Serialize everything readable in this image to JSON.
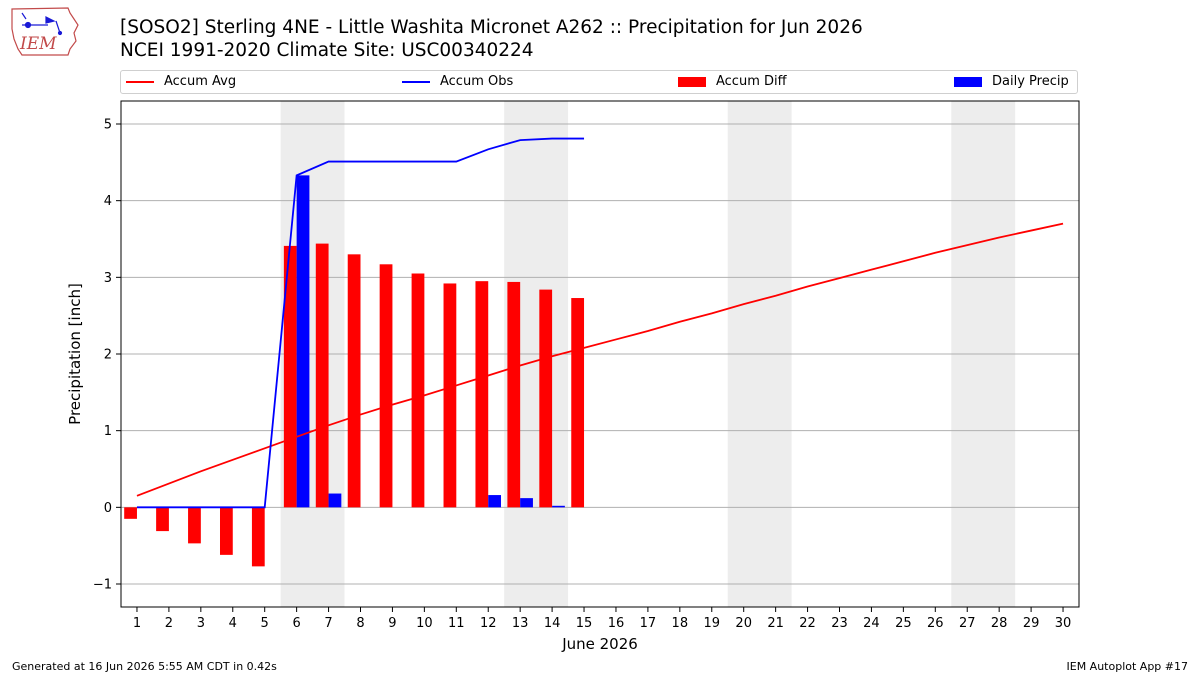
{
  "title": "[SOSO2] Sterling 4NE - Little Washita Micronet A262 :: Precipitation for Jun 2026",
  "subtitle": "NCEI 1991-2020 Climate Site: USC00340224",
  "logo": {
    "text": "IEM"
  },
  "footer": {
    "left": "Generated at 16 Jun 2026 5:55 AM CDT in 0.42s",
    "right": "IEM Autoplot App #17"
  },
  "chart_data": {
    "type": "bar",
    "xlabel": "June 2026",
    "ylabel": "Precipitation [inch]",
    "ylim": [
      -1.3,
      5.3
    ],
    "xlim": [
      0.5,
      30.5
    ],
    "grid": "horizontal",
    "legend_placement": "top",
    "weekend_shading": [
      [
        5.5,
        7.5
      ],
      [
        12.5,
        14.5
      ],
      [
        19.5,
        21.5
      ],
      [
        26.5,
        28.5
      ]
    ],
    "x": [
      1,
      2,
      3,
      4,
      5,
      6,
      7,
      8,
      9,
      10,
      11,
      12,
      13,
      14,
      15,
      16,
      17,
      18,
      19,
      20,
      21,
      22,
      23,
      24,
      25,
      26,
      27,
      28,
      29,
      30
    ],
    "yticks": [
      -1,
      0,
      1,
      2,
      3,
      4,
      5
    ],
    "series": [
      {
        "name": "Accum Avg",
        "kind": "line",
        "color": "#ff0000",
        "x": [
          1,
          2,
          3,
          4,
          5,
          6,
          7,
          8,
          9,
          10,
          11,
          12,
          13,
          14,
          15,
          16,
          17,
          18,
          19,
          20,
          21,
          22,
          23,
          24,
          25,
          26,
          27,
          28,
          29,
          30
        ],
        "values": [
          0.15,
          0.31,
          0.47,
          0.62,
          0.77,
          0.92,
          1.07,
          1.21,
          1.34,
          1.46,
          1.59,
          1.72,
          1.85,
          1.97,
          2.08,
          2.19,
          2.3,
          2.42,
          2.53,
          2.65,
          2.76,
          2.88,
          2.99,
          3.1,
          3.21,
          3.32,
          3.42,
          3.52,
          3.61,
          3.7
        ]
      },
      {
        "name": "Accum Obs",
        "kind": "line",
        "color": "#0000ff",
        "x": [
          1,
          2,
          3,
          4,
          5,
          6,
          7,
          8,
          9,
          10,
          11,
          12,
          13,
          14,
          15
        ],
        "values": [
          0,
          0,
          0,
          0,
          0,
          4.33,
          4.51,
          4.51,
          4.51,
          4.51,
          4.51,
          4.67,
          4.79,
          4.81,
          4.81
        ]
      },
      {
        "name": "Accum Diff",
        "kind": "bar",
        "color": "#ff0000",
        "x": [
          1,
          2,
          3,
          4,
          5,
          6,
          7,
          8,
          9,
          10,
          11,
          12,
          13,
          14,
          15
        ],
        "values": [
          -0.15,
          -0.31,
          -0.47,
          -0.62,
          -0.77,
          3.41,
          3.44,
          3.3,
          3.17,
          3.05,
          2.92,
          2.95,
          2.94,
          2.84,
          2.73
        ]
      },
      {
        "name": "Daily Precip",
        "kind": "bar",
        "color": "#0000ff",
        "x": [
          1,
          2,
          3,
          4,
          5,
          6,
          7,
          8,
          9,
          10,
          11,
          12,
          13,
          14,
          15
        ],
        "values": [
          0,
          0,
          0,
          0,
          0,
          4.33,
          0.18,
          0,
          0,
          0,
          0,
          0.16,
          0.12,
          0.02,
          0
        ]
      }
    ]
  }
}
